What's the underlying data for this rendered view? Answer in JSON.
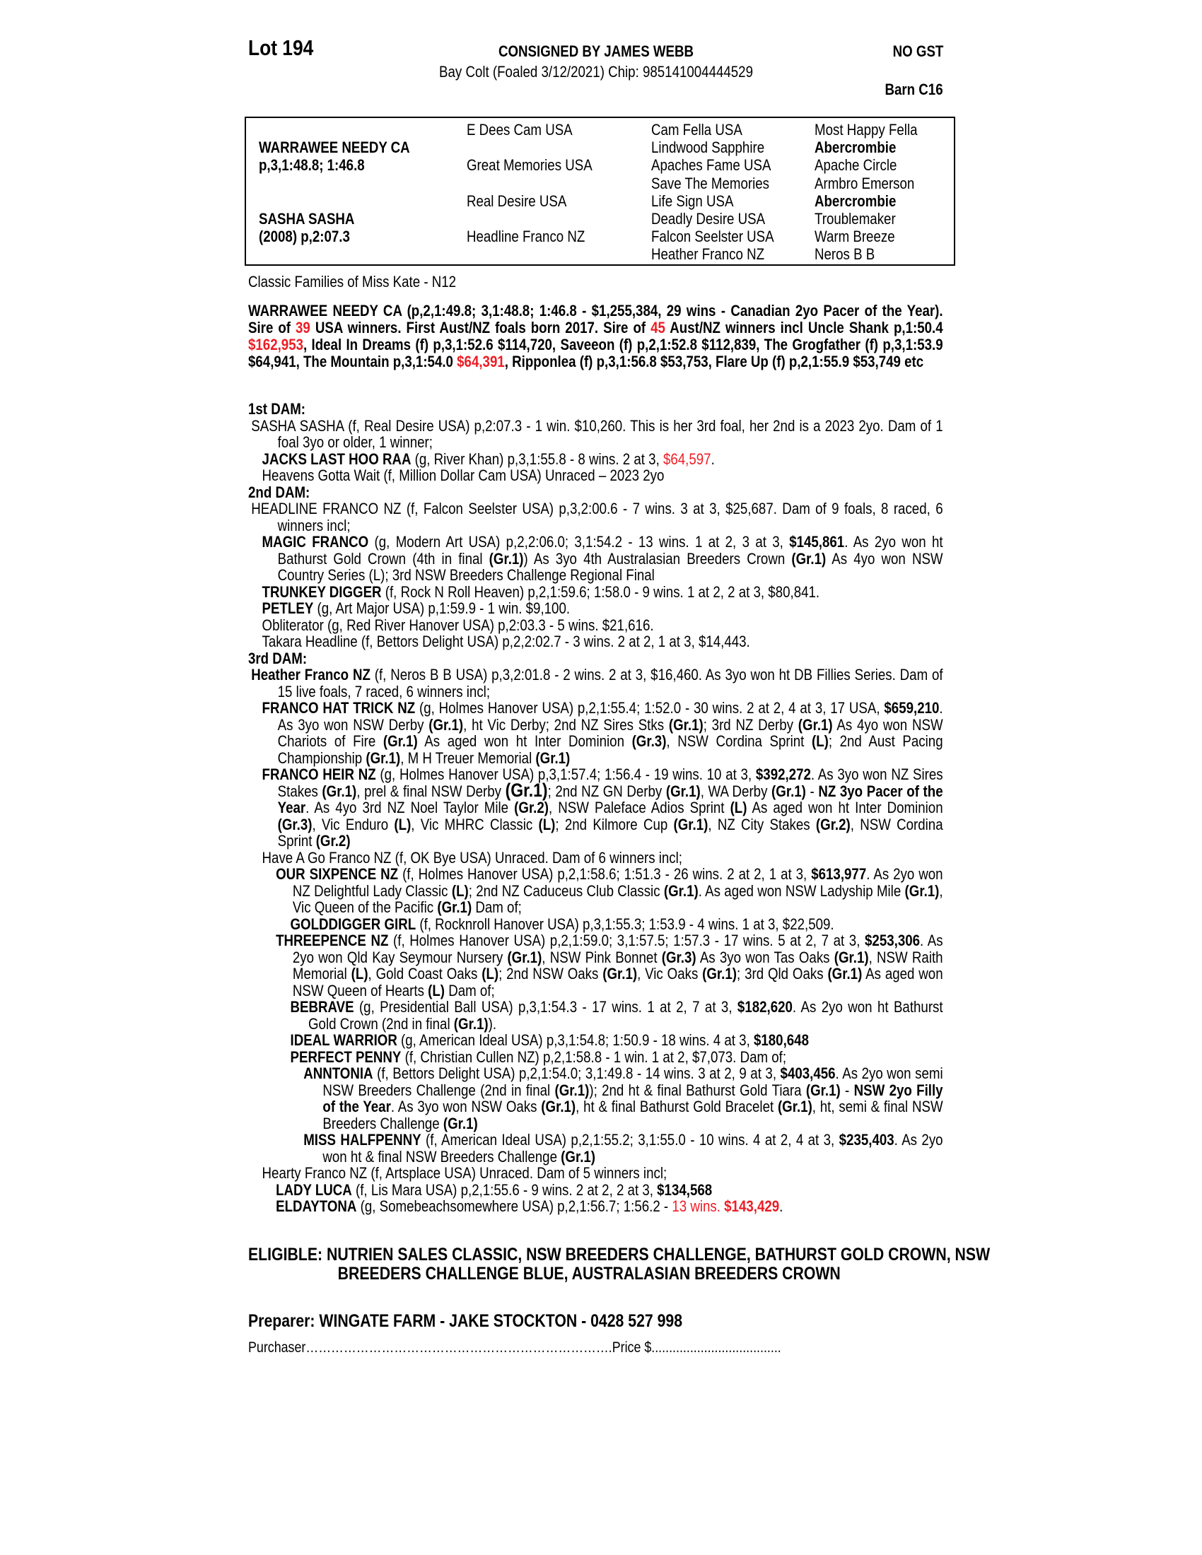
{
  "header": {
    "lot": "Lot 194",
    "consigned": "CONSIGNED BY JAMES WEBB",
    "gst": "NO GST",
    "description": "Bay Colt (Foaled 3/12/2021) Chip: 985141004444529",
    "barn": "Barn C16"
  },
  "pedigree": {
    "sire": "WARRAWEE NEEDY CA",
    "sire_record": "p,3,1:48.8; 1:46.8",
    "dam": "SASHA SASHA",
    "dam_record": "(2008) p,2:07.3",
    "gen2": [
      "E Dees Cam USA",
      "Great Memories USA",
      "Real Desire USA",
      "Headline Franco NZ"
    ],
    "gen3": [
      "Cam Fella USA",
      "Lindwood Sapphire",
      "Apaches Fame USA",
      "Save The Memories",
      "Life Sign USA",
      "Deadly Desire USA",
      "Falcon Seelster USA",
      "Heather Franco NZ"
    ],
    "gen4": [
      "Most Happy Fella",
      "Abercrombie",
      "Apache Circle",
      "Armbro Emerson",
      "Abercrombie",
      "Troublemaker",
      "Warm Breeze",
      "Neros B B"
    ]
  },
  "family": "Classic Families of Miss Kate - N12",
  "colors": {
    "highlight": "#ee1c24",
    "text": "#000000"
  },
  "sire_summary": [
    "WARRAWEE NEEDY CA (p,2,1:49.8; 3,1:48.8; 1:46.8 - $1,255,384, 29 wins - Canadian 2yo Pacer of the Year). Sire of ",
    {
      "r": "39"
    },
    " USA winners. First Aust/NZ foals born 2017. Sire of ",
    {
      "r": "45"
    },
    " Aust/NZ winners incl Uncle Shank p,1:50.4 ",
    {
      "r": "$162,953"
    },
    ", Ideal In Dreams (f) p,3,1:52.6 $114,720, Saveeon (f) p,2,1:52.8 $112,839, The Grogfather (f) p,3,1:53.9 $64,941, The Mountain p,3,1:54.0 ",
    {
      "r": "$64,391"
    },
    ", Ripponlea (f) p,3,1:56.8 $53,753, Flare Up (f) p,2,1:55.9 $53,749 etc"
  ],
  "notes": [
    {
      "heading": "1st DAM:"
    },
    {
      "depth": 0,
      "segs": [
        "SASHA SASHA (f, Real Desire USA) p,2:07.3 - 1 win. $10,260. This is her 3rd foal, her 2nd is a 2023 2yo. Dam of 1 foal 3yo or older, 1 winner;"
      ]
    },
    {
      "depth": 1,
      "segs": [
        {
          "b": "JACKS LAST HOO RAA"
        },
        " (g, River Khan) p,3,1:55.8 - 8 wins. 2 at 3, ",
        {
          "r": "$64,597"
        },
        "."
      ]
    },
    {
      "depth": 1,
      "segs": [
        "Heavens Gotta Wait (f, Million Dollar Cam USA) Unraced – 2023 2yo"
      ]
    },
    {
      "heading": "2nd DAM:"
    },
    {
      "depth": 0,
      "segs": [
        "HEADLINE FRANCO NZ (f, Falcon Seelster USA) p,3,2:00.6 - 7 wins. 3 at 3, $25,687. Dam of 9 foals, 8 raced, 6 winners incl;"
      ]
    },
    {
      "depth": 1,
      "segs": [
        {
          "b": "MAGIC FRANCO"
        },
        " (g, Modern Art USA) p,2,2:06.0; 3,1:54.2 - 13 wins. 1 at 2, 3 at 3, ",
        {
          "b": "$145,861"
        },
        ". As 2yo won ht Bathurst Gold Crown (4th in final ",
        {
          "b": "(Gr.1)"
        },
        ") As 3yo 4th Australasian Breeders Crown ",
        {
          "b": "(Gr.1)"
        },
        " As 4yo won NSW Country Series (L); 3rd NSW Breeders Challenge Regional Final"
      ]
    },
    {
      "depth": 1,
      "segs": [
        {
          "b": "TRUNKEY DIGGER"
        },
        " (f, Rock N Roll Heaven) p,2,1:59.6; 1:58.0 - 9 wins. 1 at 2, 2 at 3, $80,841."
      ]
    },
    {
      "depth": 1,
      "segs": [
        {
          "b": "PETLEY"
        },
        " (g, Art Major USA) p,1:59.9 - 1 win. $9,100."
      ]
    },
    {
      "depth": 1,
      "segs": [
        "Obliterator (g, Red River Hanover USA) p,2:03.3 - 5 wins. $21,616."
      ]
    },
    {
      "depth": 1,
      "segs": [
        "Takara Headline (f, Bettors Delight USA) p,2,2:02.7 - 3 wins. 2 at 2, 1 at 3, $14,443."
      ]
    },
    {
      "heading": "3rd DAM:"
    },
    {
      "depth": 0,
      "segs": [
        {
          "b": "Heather Franco NZ"
        },
        " (f, Neros B B USA) p,3,2:01.8 - 2 wins. 2 at 3, $16,460. As 3yo won ht DB Fillies Series. Dam of 15 live foals, 7 raced, 6 winners incl;"
      ]
    },
    {
      "depth": 1,
      "segs": [
        {
          "b": "FRANCO HAT TRICK NZ"
        },
        " (g, Holmes Hanover USA) p,2,1:55.4; 1:52.0 - 30 wins. 2 at 2, 4 at 3, 17 USA, ",
        {
          "b": "$659,210"
        },
        ". As 3yo won NSW Derby ",
        {
          "b": "(Gr.1)"
        },
        ", ht Vic Derby; 2nd NZ Sires Stks ",
        {
          "b": "(Gr.1)"
        },
        "; 3rd NZ Derby ",
        {
          "b": "(Gr.1)"
        },
        " As 4yo won NSW Chariots of Fire ",
        {
          "b": "(Gr.1)"
        },
        " As aged won ht Inter Dominion ",
        {
          "b": "(Gr.3)"
        },
        ", NSW Cordina Sprint ",
        {
          "b": "(L)"
        },
        "; 2nd Aust Pacing Championship ",
        {
          "b": "(Gr.1)"
        },
        ", M H Treuer Memorial ",
        {
          "b": "(Gr.1)"
        }
      ]
    },
    {
      "depth": 1,
      "segs": [
        {
          "b": "FRANCO HEIR NZ"
        },
        " (g, Holmes Hanover USA) p,3,1:57.4; 1:56.4 - 19 wins. 10 at 3, ",
        {
          "b": "$392,272"
        },
        ". As 3yo won NZ Sires Stakes ",
        {
          "b": "(Gr.1)"
        },
        ", prel & final NSW Derby ",
        {
          "bb": "(Gr.1)"
        },
        "; 2nd NZ GN Derby ",
        {
          "b": "(Gr.1)"
        },
        ", WA Derby ",
        {
          "b": "(Gr.1)"
        },
        " - ",
        {
          "b": "NZ 3yo Pacer of the Year"
        },
        ". As 4yo 3rd NZ Noel Taylor Mile ",
        {
          "b": "(Gr.2)"
        },
        ", NSW Paleface Adios Sprint ",
        {
          "b": "(L)"
        },
        " As aged won ht Inter Dominion ",
        {
          "b": "(Gr.3)"
        },
        ", Vic Enduro ",
        {
          "b": "(L)"
        },
        ", Vic MHRC Classic ",
        {
          "b": "(L)"
        },
        "; 2nd Kilmore Cup ",
        {
          "b": "(Gr.1)"
        },
        ", NZ City Stakes ",
        {
          "b": "(Gr.2)"
        },
        ", NSW Cordina Sprint ",
        {
          "b": "(Gr.2)"
        }
      ]
    },
    {
      "depth": 1,
      "segs": [
        "Have A Go Franco NZ (f, OK Bye USA) Unraced. Dam of 6 winners incl;"
      ]
    },
    {
      "depth": 2,
      "segs": [
        {
          "b": "OUR SIXPENCE NZ"
        },
        " (f, Holmes Hanover USA) p,2,1:58.6; 1:51.3 - 26 wins. 2 at 2, 1 at 3, ",
        {
          "b": "$613,977"
        },
        ". As 2yo won NZ Delightful Lady Classic ",
        {
          "b": "(L)"
        },
        "; 2nd NZ Caduceus Club Classic ",
        {
          "b": "(Gr.1)"
        },
        ". As aged won NSW Ladyship Mile ",
        {
          "b": "(Gr.1)"
        },
        ", Vic Queen of the Pacific ",
        {
          "b": "(Gr.1)"
        },
        " Dam of;"
      ]
    },
    {
      "depth": 3,
      "segs": [
        {
          "b": "GOLDDIGGER GIRL"
        },
        " (f, Rocknroll Hanover USA) p,3,1:55.3; 1:53.9 - 4 wins. 1 at 3, $22,509."
      ]
    },
    {
      "depth": 2,
      "segs": [
        {
          "b": "THREEPENCE NZ"
        },
        " (f, Holmes Hanover USA) p,2,1:59.0; 3,1:57.5; 1:57.3 - 17 wins. 5 at 2, 7 at 3, ",
        {
          "b": "$253,306"
        },
        ". As 2yo won Qld Kay Seymour Nursery ",
        {
          "b": "(Gr.1)"
        },
        ", NSW Pink Bonnet ",
        {
          "b": "(Gr.3)"
        },
        " As 3yo won Tas Oaks ",
        {
          "b": "(Gr.1)"
        },
        ", NSW Raith Memorial ",
        {
          "b": "(L)"
        },
        ", Gold Coast Oaks ",
        {
          "b": "(L)"
        },
        "; 2nd NSW Oaks ",
        {
          "b": "(Gr.1)"
        },
        ", Vic Oaks ",
        {
          "b": "(Gr.1)"
        },
        "; 3rd Qld Oaks ",
        {
          "b": "(Gr.1)"
        },
        " As aged won NSW Queen of Hearts ",
        {
          "b": "(L)"
        },
        " Dam of;"
      ]
    },
    {
      "depth": 3,
      "segs": [
        {
          "b": "BEBRAVE"
        },
        " (g, Presidential Ball USA) p,3,1:54.3 - 17 wins. 1 at 2, 7 at 3, ",
        {
          "b": "$182,620"
        },
        ". As 2yo won ht Bathurst Gold Crown (2nd in final ",
        {
          "b": "(Gr.1)"
        },
        ")."
      ]
    },
    {
      "depth": 3,
      "segs": [
        {
          "b": "IDEAL WARRIOR"
        },
        " (g, American Ideal USA) p,3,1:54.8; 1:50.9 - 18 wins. 4 at 3, ",
        {
          "b": "$180,648"
        }
      ]
    },
    {
      "depth": 3,
      "segs": [
        {
          "b": "PERFECT PENNY"
        },
        " (f, Christian Cullen NZ) p,2,1:58.8 - 1 win. 1 at 2, $7,073. Dam of;"
      ]
    },
    {
      "depth": 4,
      "segs": [
        {
          "b": "ANNTONIA"
        },
        " (f, Bettors Delight USA) p,2,1:54.0; 3,1:49.8 - 14 wins. 3 at 2, 9 at 3, ",
        {
          "b": "$403,456"
        },
        ". As 2yo won semi NSW Breeders Challenge (2nd in final ",
        {
          "b": "(Gr.1)"
        },
        "); 2nd ht & final Bathurst Gold Tiara ",
        {
          "b": "(Gr.1)"
        },
        " - ",
        {
          "b": "NSW 2yo Filly of the Year"
        },
        ". As 3yo won NSW Oaks ",
        {
          "b": "(Gr.1)"
        },
        ", ht & final Bathurst Gold Bracelet ",
        {
          "b": "(Gr.1)"
        },
        ", ht, semi & final NSW Breeders Challenge ",
        {
          "b": "(Gr.1)"
        }
      ]
    },
    {
      "depth": 4,
      "segs": [
        {
          "b": "MISS HALFPENNY"
        },
        " (f, American Ideal USA) p,2,1:55.2; 3,1:55.0 - 10 wins. 4 at 2, 4 at 3, ",
        {
          "b": "$235,403"
        },
        ". As 2yo won ht & final NSW Breeders Challenge ",
        {
          "b": "(Gr.1)"
        }
      ]
    },
    {
      "depth": 1,
      "segs": [
        "Hearty Franco NZ (f, Artsplace USA) Unraced. Dam of 5 winners incl;"
      ]
    },
    {
      "depth": 2,
      "segs": [
        {
          "b": "LADY LUCA"
        },
        " (f, Lis Mara USA) p,2,1:55.6 - 9 wins. 2 at 2, 2 at 3, ",
        {
          "b": "$134,568"
        }
      ]
    },
    {
      "depth": 2,
      "segs": [
        {
          "b": "ELDAYTONA"
        },
        " (g, Somebeachsomewhere USA) p,2,1:56.7; 1:56.2 - ",
        {
          "r": "13 wins. "
        },
        {
          "br": "$143,429"
        },
        "."
      ]
    }
  ],
  "eligible": "ELIGIBLE: NUTRIEN SALES CLASSIC, NSW BREEDERS CHALLENGE, BATHURST GOLD CROWN, NSW BREEDERS CHALLENGE BLUE, AUSTRALASIAN BREEDERS CROWN",
  "preparer": "Preparer: WINGATE FARM - JAKE STOCKTON - 0428 527 998",
  "purchaser": "Purchaser……………………………………………………………….Price $....................................."
}
